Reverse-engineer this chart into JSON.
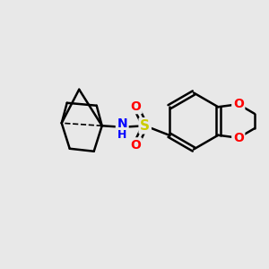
{
  "bg_color": "#e8e8e8",
  "bond_color": "#000000",
  "bond_width": 1.8,
  "atom_colors": {
    "S": "#cccc00",
    "O": "#ff0000",
    "N": "#0000ff",
    "C": "#000000"
  },
  "font_size_atom": 10,
  "fig_size": [
    3.0,
    3.0
  ],
  "dpi": 100
}
